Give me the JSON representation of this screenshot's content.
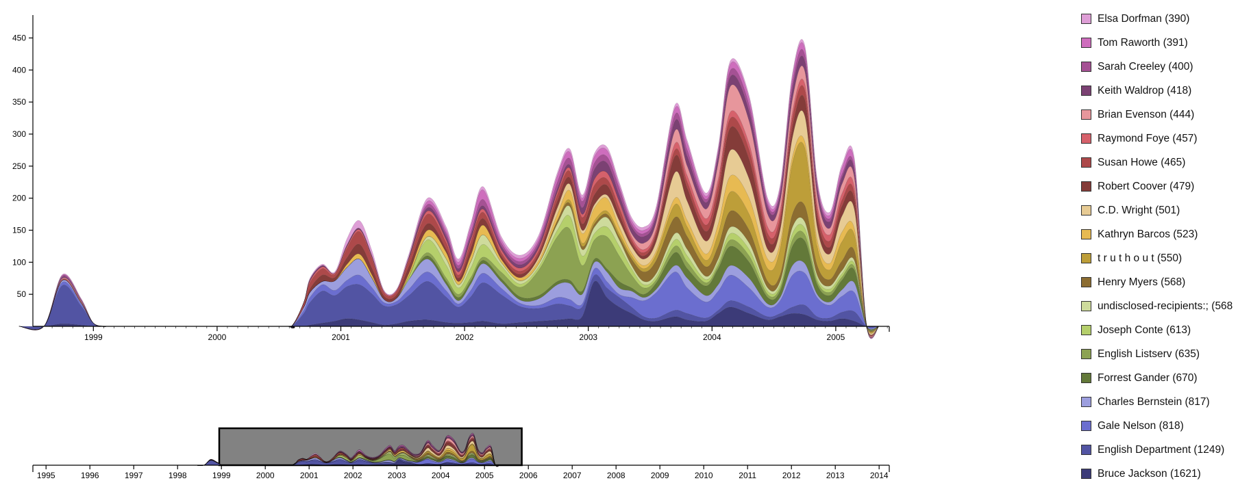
{
  "chart_data": {
    "type": "area",
    "stacked": true,
    "smooth": true,
    "y_ticks": [
      50,
      100,
      150,
      200,
      250,
      300,
      350,
      400,
      450
    ],
    "x_tick_labels": [
      "1999",
      "2000",
      "2001",
      "2002",
      "2003",
      "2004",
      "2005"
    ],
    "x": [
      1998.4,
      1998.6,
      1998.75,
      1998.9,
      1999.0,
      1999.1,
      1999.2,
      2000.5,
      2000.6,
      2000.7,
      2000.75,
      2000.85,
      2000.95,
      2001.05,
      2001.15,
      2001.25,
      2001.35,
      2001.45,
      2001.55,
      2001.7,
      2001.85,
      2001.95,
      2002.05,
      2002.15,
      2002.3,
      2002.45,
      2002.6,
      2002.75,
      2002.85,
      2002.95,
      2003.05,
      2003.15,
      2003.25,
      2003.35,
      2003.45,
      2003.55,
      2003.7,
      2003.8,
      2003.95,
      2004.05,
      2004.15,
      2004.3,
      2004.45,
      2004.55,
      2004.65,
      2004.75,
      2004.85,
      2004.95,
      2005.05,
      2005.15,
      2005.25,
      2005.35
    ],
    "series": [
      {
        "name": "Bruce Jackson (1621)",
        "color": "#3c3b78",
        "values": [
          0,
          0,
          4,
          2,
          0,
          0,
          0,
          0,
          0,
          0,
          2,
          5,
          8,
          12,
          10,
          6,
          2,
          4,
          8,
          10,
          6,
          5,
          6,
          8,
          4,
          6,
          8,
          10,
          12,
          15,
          70,
          45,
          30,
          20,
          10,
          8,
          15,
          10,
          8,
          20,
          30,
          20,
          10,
          15,
          20,
          18,
          10,
          8,
          12,
          8,
          0,
          0
        ]
      },
      {
        "name": "English Department (1249)",
        "color": "#5254a3",
        "values": [
          0,
          0,
          60,
          30,
          5,
          0,
          0,
          0,
          0,
          20,
          35,
          50,
          40,
          50,
          55,
          45,
          30,
          30,
          40,
          60,
          40,
          25,
          40,
          60,
          45,
          25,
          20,
          25,
          20,
          15,
          10,
          15,
          15,
          10,
          5,
          5,
          10,
          10,
          5,
          5,
          10,
          10,
          5,
          5,
          10,
          15,
          5,
          5,
          10,
          15,
          0,
          0
        ]
      },
      {
        "name": "Gale Nelson (818)",
        "color": "#6b6ecf",
        "values": [
          0,
          0,
          5,
          3,
          0,
          0,
          0,
          0,
          0,
          5,
          8,
          10,
          8,
          10,
          15,
          10,
          5,
          5,
          10,
          15,
          10,
          5,
          10,
          15,
          10,
          5,
          5,
          10,
          10,
          5,
          10,
          10,
          5,
          15,
          25,
          40,
          60,
          40,
          25,
          30,
          40,
          30,
          15,
          20,
          50,
          50,
          30,
          20,
          25,
          30,
          0,
          0
        ]
      },
      {
        "name": "Charles Bernstein (817)",
        "color": "#9c9ede",
        "values": [
          0,
          0,
          3,
          2,
          0,
          0,
          0,
          0,
          0,
          5,
          8,
          5,
          15,
          20,
          25,
          15,
          5,
          5,
          15,
          20,
          10,
          5,
          10,
          15,
          10,
          5,
          10,
          20,
          25,
          15,
          10,
          15,
          10,
          10,
          5,
          5,
          10,
          15,
          10,
          10,
          15,
          15,
          5,
          5,
          15,
          15,
          5,
          5,
          10,
          15,
          0,
          0
        ]
      },
      {
        "name": "Forrest Gander (670)",
        "color": "#637939",
        "values": [
          0,
          0,
          0,
          0,
          0,
          0,
          0,
          0,
          0,
          0,
          0,
          0,
          0,
          0,
          0,
          0,
          0,
          0,
          0,
          5,
          5,
          5,
          5,
          5,
          5,
          5,
          5,
          5,
          5,
          5,
          5,
          5,
          10,
          5,
          5,
          10,
          20,
          15,
          15,
          25,
          30,
          25,
          10,
          10,
          30,
          35,
          15,
          10,
          15,
          20,
          0,
          0
        ]
      },
      {
        "name": "English Listserv (635)",
        "color": "#8ca252",
        "values": [
          0,
          0,
          0,
          0,
          0,
          0,
          0,
          0,
          0,
          0,
          0,
          0,
          0,
          0,
          0,
          0,
          0,
          0,
          0,
          5,
          5,
          5,
          5,
          5,
          10,
          15,
          40,
          70,
          80,
          40,
          30,
          50,
          40,
          20,
          10,
          5,
          10,
          10,
          5,
          5,
          10,
          10,
          5,
          5,
          10,
          10,
          5,
          5,
          5,
          5,
          0,
          0
        ]
      },
      {
        "name": "Joseph Conte (613)",
        "color": "#b5cf6b",
        "values": [
          0,
          0,
          0,
          0,
          0,
          0,
          0,
          0,
          0,
          0,
          0,
          0,
          0,
          0,
          0,
          0,
          0,
          0,
          5,
          20,
          20,
          10,
          15,
          20,
          10,
          5,
          5,
          10,
          20,
          15,
          10,
          15,
          15,
          10,
          5,
          5,
          10,
          10,
          5,
          5,
          10,
          10,
          5,
          5,
          10,
          10,
          5,
          5,
          5,
          5,
          0,
          0
        ]
      },
      {
        "name": "undisclosed-recipients:; (568)",
        "color": "#cedb9c",
        "values": [
          0,
          0,
          0,
          0,
          0,
          0,
          0,
          0,
          0,
          0,
          0,
          0,
          0,
          0,
          0,
          0,
          0,
          0,
          0,
          5,
          10,
          5,
          10,
          15,
          5,
          5,
          5,
          10,
          15,
          10,
          10,
          15,
          10,
          5,
          5,
          5,
          10,
          10,
          5,
          5,
          10,
          10,
          5,
          5,
          10,
          10,
          5,
          5,
          5,
          5,
          0,
          0
        ]
      },
      {
        "name": "Henry Myers (568)",
        "color": "#8c6d31",
        "values": [
          0,
          0,
          0,
          0,
          0,
          0,
          0,
          0,
          0,
          0,
          0,
          0,
          0,
          0,
          0,
          0,
          0,
          0,
          0,
          0,
          0,
          0,
          0,
          0,
          0,
          0,
          0,
          5,
          5,
          5,
          5,
          5,
          5,
          10,
          15,
          20,
          25,
          20,
          15,
          20,
          25,
          20,
          10,
          10,
          20,
          25,
          15,
          10,
          15,
          15,
          0,
          0
        ]
      },
      {
        "name": "t r u t h o u t (550)",
        "color": "#bd9e39",
        "values": [
          0,
          0,
          0,
          0,
          0,
          0,
          0,
          0,
          0,
          0,
          0,
          0,
          0,
          0,
          0,
          0,
          0,
          0,
          0,
          0,
          0,
          0,
          0,
          0,
          0,
          0,
          0,
          0,
          5,
          5,
          5,
          5,
          5,
          5,
          5,
          10,
          20,
          15,
          10,
          20,
          30,
          25,
          20,
          40,
          80,
          90,
          30,
          15,
          30,
          25,
          0,
          0
        ]
      },
      {
        "name": "Kathryn Barcos (523)",
        "color": "#e7ba52",
        "values": [
          0,
          0,
          0,
          0,
          0,
          0,
          0,
          0,
          0,
          0,
          0,
          0,
          0,
          5,
          8,
          5,
          0,
          0,
          5,
          10,
          10,
          5,
          10,
          15,
          5,
          5,
          5,
          10,
          15,
          15,
          20,
          20,
          10,
          5,
          5,
          5,
          10,
          10,
          10,
          15,
          25,
          25,
          15,
          10,
          10,
          10,
          10,
          10,
          15,
          10,
          0,
          0
        ]
      },
      {
        "name": "C.D. Wright (501)",
        "color": "#e7cb94",
        "values": [
          0,
          0,
          0,
          0,
          0,
          0,
          0,
          0,
          0,
          0,
          0,
          0,
          0,
          0,
          0,
          0,
          0,
          0,
          0,
          0,
          0,
          0,
          0,
          0,
          0,
          0,
          5,
          10,
          10,
          5,
          5,
          5,
          10,
          10,
          10,
          15,
          40,
          30,
          20,
          25,
          40,
          30,
          15,
          20,
          30,
          40,
          20,
          15,
          25,
          30,
          0,
          0
        ]
      },
      {
        "name": "Robert Coover (479)",
        "color": "#843c39",
        "values": [
          0,
          0,
          0,
          0,
          0,
          0,
          0,
          0,
          0,
          0,
          5,
          10,
          5,
          10,
          15,
          10,
          5,
          5,
          10,
          10,
          5,
          5,
          10,
          10,
          5,
          5,
          5,
          10,
          10,
          10,
          15,
          15,
          10,
          5,
          5,
          10,
          25,
          20,
          15,
          20,
          35,
          30,
          15,
          10,
          15,
          25,
          15,
          10,
          15,
          15,
          0,
          0
        ]
      },
      {
        "name": "Susan Howe (465)",
        "color": "#ad494a",
        "values": [
          0,
          0,
          1,
          1,
          0,
          0,
          0,
          0,
          0,
          5,
          10,
          10,
          5,
          15,
          20,
          15,
          5,
          5,
          10,
          15,
          10,
          5,
          10,
          10,
          5,
          5,
          5,
          10,
          10,
          10,
          15,
          10,
          10,
          5,
          5,
          5,
          10,
          10,
          10,
          15,
          15,
          15,
          10,
          10,
          15,
          15,
          10,
          10,
          10,
          10,
          0,
          0
        ]
      },
      {
        "name": "Raymond Foye (457)",
        "color": "#d6616b",
        "values": [
          0,
          0,
          1,
          1,
          0,
          0,
          0,
          0,
          0,
          2,
          3,
          3,
          2,
          3,
          3,
          3,
          2,
          2,
          3,
          5,
          5,
          5,
          5,
          5,
          5,
          5,
          5,
          5,
          5,
          5,
          10,
          10,
          10,
          5,
          5,
          5,
          10,
          10,
          10,
          10,
          10,
          10,
          10,
          10,
          10,
          10,
          10,
          10,
          10,
          10,
          0,
          0
        ]
      },
      {
        "name": "Brian Evenson (444)",
        "color": "#e7969c",
        "values": [
          0,
          0,
          1,
          1,
          0,
          0,
          0,
          0,
          0,
          0,
          0,
          0,
          0,
          0,
          0,
          0,
          0,
          0,
          0,
          0,
          0,
          0,
          0,
          0,
          0,
          0,
          0,
          0,
          0,
          0,
          0,
          0,
          0,
          5,
          10,
          10,
          20,
          15,
          15,
          25,
          40,
          35,
          20,
          15,
          20,
          20,
          15,
          10,
          15,
          15,
          0,
          0
        ]
      },
      {
        "name": "Keith Waldrop (418)",
        "color": "#7b4173",
        "values": [
          0,
          0,
          2,
          1,
          0,
          0,
          0,
          0,
          0,
          0,
          2,
          2,
          0,
          2,
          2,
          2,
          0,
          0,
          2,
          5,
          5,
          5,
          5,
          5,
          5,
          5,
          5,
          5,
          5,
          10,
          15,
          15,
          10,
          10,
          10,
          10,
          15,
          15,
          10,
          10,
          15,
          15,
          10,
          10,
          15,
          15,
          10,
          10,
          10,
          10,
          0,
          0
        ]
      },
      {
        "name": "Sarah Creeley (400)",
        "color": "#a55194",
        "values": [
          0,
          0,
          2,
          1,
          0,
          0,
          0,
          0,
          0,
          0,
          0,
          0,
          0,
          0,
          0,
          0,
          0,
          0,
          0,
          5,
          5,
          5,
          5,
          10,
          5,
          5,
          5,
          10,
          10,
          10,
          10,
          10,
          10,
          5,
          5,
          5,
          10,
          10,
          5,
          5,
          10,
          10,
          5,
          5,
          10,
          10,
          5,
          5,
          5,
          5,
          0,
          0
        ]
      },
      {
        "name": "Tom Raworth (391)",
        "color": "#ce6dbd",
        "values": [
          0,
          0,
          1,
          1,
          0,
          0,
          0,
          0,
          0,
          0,
          0,
          0,
          0,
          0,
          0,
          0,
          0,
          0,
          0,
          5,
          5,
          5,
          10,
          15,
          5,
          5,
          5,
          10,
          10,
          5,
          10,
          10,
          5,
          5,
          5,
          5,
          10,
          10,
          5,
          5,
          10,
          10,
          5,
          5,
          10,
          10,
          5,
          5,
          10,
          10,
          0,
          0
        ]
      },
      {
        "name": "Elsa Dorfman (390)",
        "color": "#de9ed6",
        "values": [
          0,
          0,
          1,
          1,
          0,
          0,
          0,
          0,
          0,
          0,
          2,
          2,
          2,
          10,
          12,
          8,
          2,
          2,
          5,
          5,
          5,
          5,
          5,
          5,
          5,
          5,
          5,
          5,
          5,
          5,
          5,
          5,
          5,
          5,
          5,
          5,
          5,
          5,
          5,
          5,
          5,
          5,
          5,
          5,
          5,
          5,
          5,
          5,
          5,
          5,
          0,
          0
        ]
      }
    ],
    "mini_tick_labels": [
      "1995",
      "1996",
      "1997",
      "1998",
      "1999",
      "2000",
      "2001",
      "2002",
      "2003",
      "2004",
      "2005",
      "2006",
      "2007",
      "2008",
      "2009",
      "2010",
      "2011",
      "2012",
      "2013",
      "2014"
    ]
  },
  "legend": {
    "items": [
      {
        "label": "Elsa Dorfman (390)",
        "color": "#de9ed6"
      },
      {
        "label": "Tom Raworth (391)",
        "color": "#ce6dbd"
      },
      {
        "label": "Sarah Creeley (400)",
        "color": "#a55194"
      },
      {
        "label": "Keith Waldrop (418)",
        "color": "#7b4173"
      },
      {
        "label": "Brian Evenson (444)",
        "color": "#e7969c"
      },
      {
        "label": "Raymond Foye (457)",
        "color": "#d6616b"
      },
      {
        "label": "Susan Howe (465)",
        "color": "#ad494a"
      },
      {
        "label": "Robert Coover (479)",
        "color": "#843c39"
      },
      {
        "label": "C.D. Wright (501)",
        "color": "#e7cb94"
      },
      {
        "label": "Kathryn Barcos (523)",
        "color": "#e7ba52"
      },
      {
        "label": "t r u t h o u t (550)",
        "color": "#bd9e39"
      },
      {
        "label": "Henry Myers (568)",
        "color": "#8c6d31"
      },
      {
        "label": "undisclosed-recipients:; (568",
        "color": "#cedb9c"
      },
      {
        "label": "Joseph Conte (613)",
        "color": "#b5cf6b"
      },
      {
        "label": "English Listserv (635)",
        "color": "#8ca252"
      },
      {
        "label": "Forrest Gander (670)",
        "color": "#637939"
      },
      {
        "label": "Charles Bernstein (817)",
        "color": "#9c9ede"
      },
      {
        "label": "Gale Nelson (818)",
        "color": "#6b6ecf"
      },
      {
        "label": "English Department (1249)",
        "color": "#5254a3"
      },
      {
        "label": "Bruce Jackson (1621)",
        "color": "#3c3b78"
      }
    ]
  }
}
